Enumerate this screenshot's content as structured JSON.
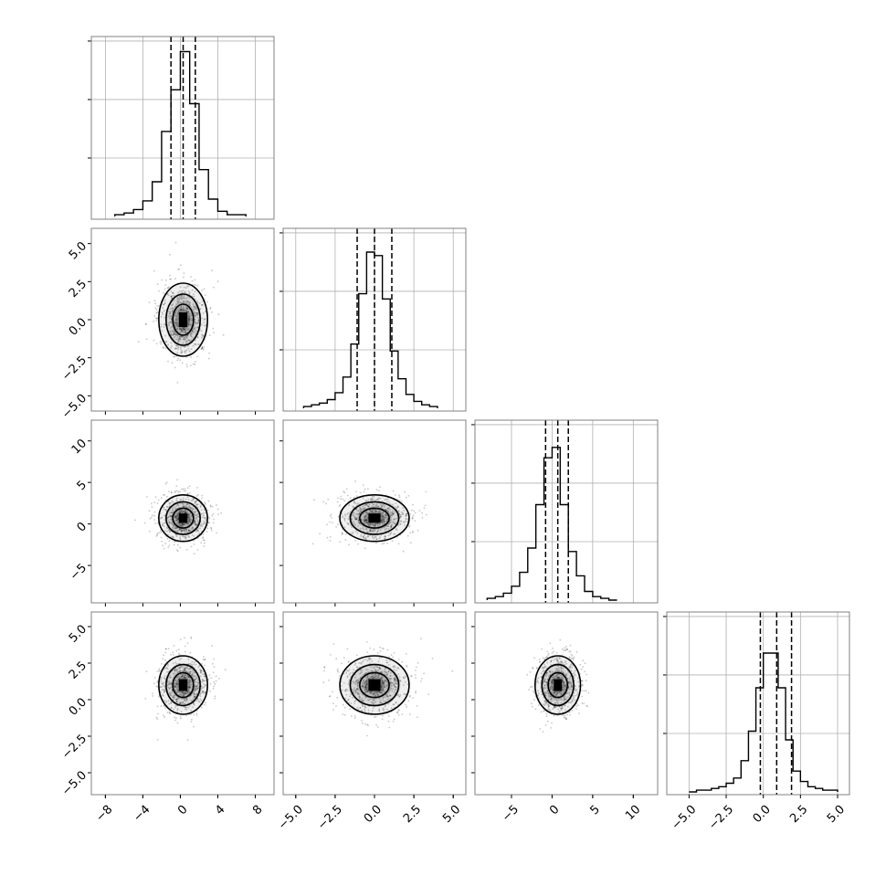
{
  "chart_data": [
    {
      "type": "histogram",
      "panel": "hist-0",
      "xlim": [
        -9.5,
        10
      ],
      "bins": [
        -7,
        -6,
        -5,
        -4,
        -3,
        -2,
        -1,
        0,
        1,
        2,
        3,
        4,
        5,
        6,
        7
      ],
      "values": [
        0.01,
        0.02,
        0.04,
        0.09,
        0.2,
        0.49,
        0.73,
        0.95,
        0.65,
        0.27,
        0.1,
        0.03,
        0.01,
        0.01
      ],
      "ymax": 1.0,
      "quantiles": [
        -1.0,
        0.3,
        1.6
      ]
    },
    {
      "type": "histogram",
      "panel": "hist-1",
      "xlim": [
        -5.8,
        5.8
      ],
      "bins": [
        -4.5,
        -4,
        -3.5,
        -3,
        -2.5,
        -2,
        -1.5,
        -1,
        -0.5,
        0,
        0.5,
        1,
        1.5,
        2,
        2.5,
        3,
        3.5,
        4
      ],
      "values": [
        0.01,
        0.02,
        0.03,
        0.05,
        0.09,
        0.18,
        0.37,
        0.66,
        0.9,
        0.88,
        0.63,
        0.33,
        0.17,
        0.08,
        0.04,
        0.02,
        0.01
      ],
      "ymax": 1.0,
      "quantiles": [
        -1.1,
        0.0,
        1.1
      ]
    },
    {
      "type": "histogram",
      "panel": "hist-2",
      "xlim": [
        -9.5,
        13
      ],
      "bins": [
        -8,
        -7,
        -6,
        -5,
        -4,
        -3,
        -2,
        -1,
        0,
        1,
        2,
        3,
        4,
        5,
        6,
        7,
        8
      ],
      "values": [
        0.01,
        0.02,
        0.04,
        0.08,
        0.16,
        0.3,
        0.55,
        0.82,
        0.88,
        0.55,
        0.28,
        0.14,
        0.05,
        0.02,
        0.01,
        0.0
      ],
      "ymax": 1.0,
      "quantiles": [
        -0.8,
        0.7,
        2.0
      ]
    },
    {
      "type": "histogram",
      "panel": "hist-3",
      "xlim": [
        -6.5,
        5.8
      ],
      "bins": [
        -5,
        -4.5,
        -4,
        -3.5,
        -3,
        -2.5,
        -2,
        -1.5,
        -1,
        -0.5,
        0,
        0.5,
        1,
        1.5,
        2,
        2.5,
        3,
        3.5,
        4,
        4.5,
        5
      ],
      "values": [
        0.0,
        0.01,
        0.01,
        0.02,
        0.03,
        0.05,
        0.08,
        0.18,
        0.35,
        0.6,
        0.8,
        0.8,
        0.6,
        0.3,
        0.12,
        0.06,
        0.03,
        0.02,
        0.01,
        0.01
      ],
      "ymax": 1.0,
      "quantiles": [
        -0.2,
        0.9,
        1.9
      ]
    },
    {
      "type": "scatter-contour",
      "panel": "corner-1-0",
      "x_center": 0.3,
      "y_center": 0.0,
      "x_sigma": 1.3,
      "y_sigma": 1.2,
      "xlim": [
        -9.5,
        10
      ],
      "ylim": [
        -6,
        6
      ]
    },
    {
      "type": "scatter-contour",
      "panel": "corner-2-0",
      "x_center": 0.3,
      "y_center": 0.7,
      "x_sigma": 1.3,
      "y_sigma": 1.4,
      "xlim": [
        -9.5,
        10
      ],
      "ylim": [
        -9.5,
        12.5
      ]
    },
    {
      "type": "scatter-contour",
      "panel": "corner-2-1",
      "x_center": 0.0,
      "y_center": 0.7,
      "x_sigma": 1.1,
      "y_sigma": 1.4,
      "xlim": [
        -5.8,
        5.8
      ],
      "ylim": [
        -9.5,
        12.5
      ]
    },
    {
      "type": "scatter-contour",
      "panel": "corner-3-0",
      "x_center": 0.3,
      "y_center": 1.0,
      "x_sigma": 1.3,
      "y_sigma": 1.0,
      "xlim": [
        -9.5,
        10
      ],
      "ylim": [
        -6.5,
        6
      ]
    },
    {
      "type": "scatter-contour",
      "panel": "corner-3-1",
      "x_center": 0.0,
      "y_center": 1.0,
      "x_sigma": 1.1,
      "y_sigma": 1.0,
      "xlim": [
        -5.8,
        5.8
      ],
      "ylim": [
        -6.5,
        6
      ]
    },
    {
      "type": "scatter-contour",
      "panel": "corner-3-2",
      "x_center": 0.7,
      "y_center": 1.0,
      "x_sigma": 1.4,
      "y_sigma": 1.0,
      "xlim": [
        -9.5,
        13
      ],
      "ylim": [
        -6.5,
        6
      ]
    }
  ],
  "ticks": {
    "x0": [
      "−8",
      "−4",
      "0",
      "4",
      "8"
    ],
    "x0_values": [
      -8,
      -4,
      0,
      4,
      8
    ],
    "x1": [
      "−5.0",
      "−2.5",
      "0.0",
      "2.5",
      "5.0"
    ],
    "x1_values": [
      -5,
      -2.5,
      0,
      2.5,
      5
    ],
    "x2": [
      "−5",
      "0",
      "5",
      "10"
    ],
    "x2_values": [
      -5,
      0,
      5,
      10
    ],
    "x3": [
      "−5.0",
      "−2.5",
      "0.0",
      "2.5",
      "5.0"
    ],
    "x3_values": [
      -5,
      -2.5,
      0,
      2.5,
      5
    ],
    "y1": [
      "5.0",
      "2.5",
      "0.0",
      "−2.5",
      "−5.0"
    ],
    "y1_values": [
      5,
      2.5,
      0,
      -2.5,
      -5
    ],
    "y2": [
      "10",
      "5",
      "0",
      "−5"
    ],
    "y2_values": [
      10,
      5,
      0,
      -5
    ],
    "y3": [
      "5.0",
      "2.5",
      "0.0",
      "−2.5",
      "−5.0"
    ],
    "y3_values": [
      5,
      2.5,
      0,
      -2.5,
      -5
    ]
  },
  "colors": {
    "line": "#000000",
    "grid": "#b0b0b0",
    "frame": "#808080",
    "point": "#000000"
  }
}
